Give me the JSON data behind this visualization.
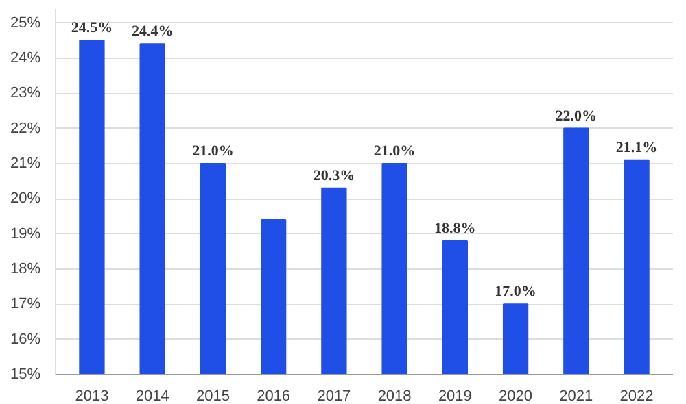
{
  "chart_data": {
    "type": "bar",
    "categories": [
      "2013",
      "2014",
      "2015",
      "2016",
      "2017",
      "2018",
      "2019",
      "2020",
      "2021",
      "2022"
    ],
    "values": [
      24.5,
      24.4,
      21.0,
      19.4,
      20.3,
      21.0,
      18.8,
      17.0,
      22.0,
      21.1
    ],
    "value_labels": [
      "24.5%",
      "24.4%",
      "21.0%",
      null,
      "20.3%",
      "21.0%",
      "18.8%",
      "17.0%",
      "22.0%",
      "21.1%"
    ],
    "color": "#1f4fe6",
    "ylim": [
      15,
      25.4
    ],
    "yticks": [
      {
        "value": 15,
        "label": "15%"
      },
      {
        "value": 16,
        "label": "16%"
      },
      {
        "value": 17,
        "label": "17%"
      },
      {
        "value": 18,
        "label": "18%"
      },
      {
        "value": 19,
        "label": "19%"
      },
      {
        "value": 20,
        "label": "20%"
      },
      {
        "value": 21,
        "label": "21%"
      },
      {
        "value": 22,
        "label": "22%"
      },
      {
        "value": 23,
        "label": "23%"
      },
      {
        "value": 24,
        "label": "24%"
      },
      {
        "value": 25,
        "label": "25%"
      }
    ],
    "grid": "y"
  }
}
